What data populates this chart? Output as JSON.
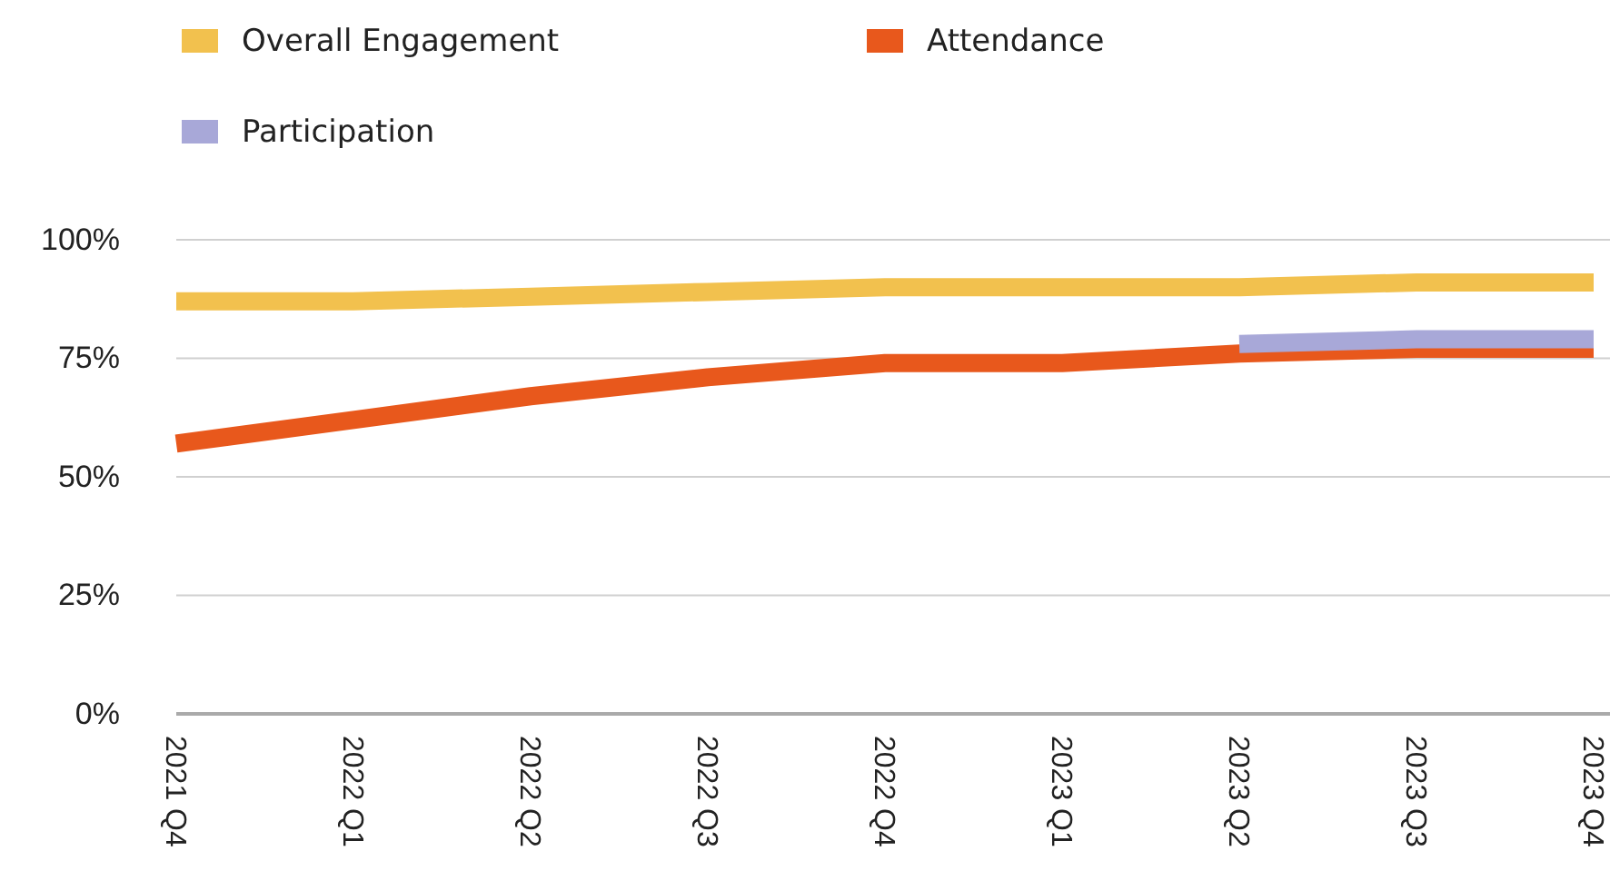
{
  "chart_data": {
    "type": "line",
    "categories": [
      "2021 Q4",
      "2022 Q1",
      "2022 Q2",
      "2022 Q3",
      "2022 Q4",
      "2023 Q1",
      "2023 Q2",
      "2023 Q3",
      "2023 Q4"
    ],
    "series": [
      {
        "name": "Overall Engagement",
        "color": "#f2c14e",
        "values": [
          87,
          87,
          88,
          89,
          90,
          90,
          90,
          91,
          91
        ]
      },
      {
        "name": "Attendance",
        "color": "#e8581c",
        "values": [
          57,
          62,
          67,
          71,
          74,
          74,
          76,
          77,
          77
        ]
      },
      {
        "name": "Participation",
        "color": "#a8a8d8",
        "values": [
          null,
          null,
          null,
          null,
          null,
          null,
          78,
          79,
          79
        ]
      }
    ],
    "ylim": [
      0,
      100
    ],
    "yticks": [
      {
        "value": 0,
        "label": "0%"
      },
      {
        "value": 25,
        "label": "25%"
      },
      {
        "value": 50,
        "label": "50%"
      },
      {
        "value": 75,
        "label": "75%"
      },
      {
        "value": 100,
        "label": "100%"
      }
    ],
    "grid": "y",
    "legend": "top left",
    "marker": "none",
    "line_style": "solid"
  }
}
